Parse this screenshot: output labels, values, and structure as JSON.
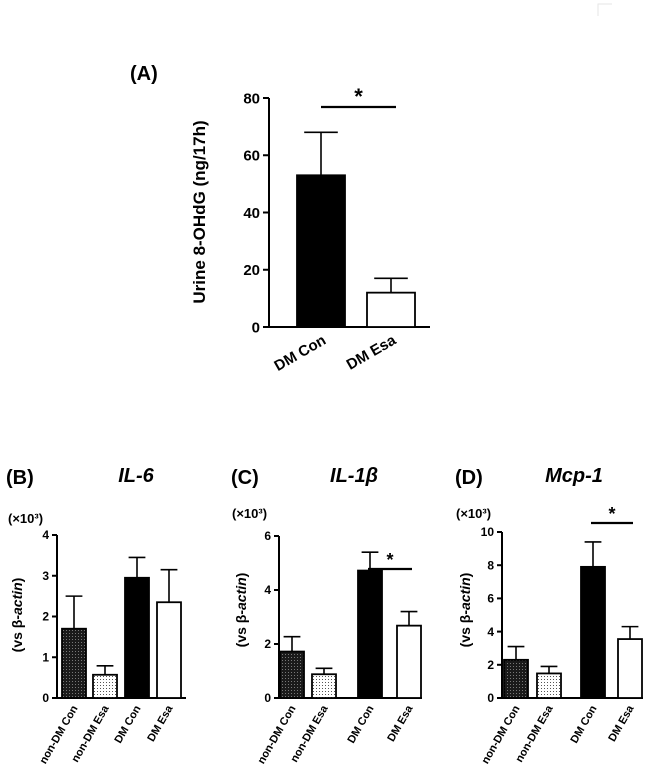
{
  "chart_data": [
    {
      "panel": "(A)",
      "type": "bar",
      "title": "",
      "ylabel": "Urine 8-OHdG (ng/17h)",
      "xlabel": "",
      "categories": [
        "DM Con",
        "DM Esa"
      ],
      "values": [
        53,
        12
      ],
      "errors": [
        15,
        5
      ],
      "fills": [
        "solid",
        "white"
      ],
      "ylim": [
        0,
        80
      ],
      "yticks": [
        "0",
        "20",
        "40",
        "60",
        "80"
      ],
      "significance": [
        {
          "from": 0,
          "to": 1,
          "label": "*"
        }
      ]
    },
    {
      "panel": "(B)",
      "type": "bar",
      "title": "IL-6",
      "ylabel": "(vs β-actin)",
      "ylabel_prefix": "(vs β-",
      "ylabel_italic": "actin",
      "ylabel_suffix": ")",
      "scale_label": "(×10³)",
      "categories": [
        "non-DM Con",
        "non-DM Esa",
        "DM Con",
        "DM Esa"
      ],
      "values": [
        1.7,
        0.57,
        2.95,
        2.35
      ],
      "errors": [
        0.8,
        0.22,
        0.5,
        0.8
      ],
      "fills": [
        "dark-dotted",
        "light-dotted",
        "solid",
        "white"
      ],
      "ylim": [
        0,
        4
      ],
      "yticks": [
        "0",
        "1",
        "2",
        "3",
        "4"
      ],
      "significance": []
    },
    {
      "panel": "(C)",
      "type": "bar",
      "title": "IL-1β",
      "ylabel": "(vs β-actin)",
      "ylabel_prefix": "(vs β-",
      "ylabel_italic": "actin",
      "ylabel_suffix": ")",
      "scale_label": "(×10³)",
      "categories": [
        "non-DM Con",
        "non-DM Esa",
        "DM Con",
        "DM Esa"
      ],
      "values": [
        1.72,
        0.88,
        4.72,
        2.68
      ],
      "errors": [
        0.55,
        0.22,
        0.68,
        0.52
      ],
      "fills": [
        "dark-dotted",
        "light-dotted",
        "solid",
        "white"
      ],
      "ylim": [
        0,
        6
      ],
      "yticks": [
        "0",
        "2",
        "4",
        "6"
      ],
      "significance": [
        {
          "from": 2,
          "to": 3,
          "label": "*"
        }
      ]
    },
    {
      "panel": "(D)",
      "type": "bar",
      "title": "Mcp-1",
      "ylabel": "(vs β-actin)",
      "ylabel_prefix": "(vs β-",
      "ylabel_italic": "actin",
      "ylabel_suffix": ")",
      "scale_label": "(×10³)",
      "categories": [
        "non-DM Con",
        "non-DM Esa",
        "DM Con",
        "DM Esa"
      ],
      "values": [
        2.3,
        1.48,
        7.9,
        3.55
      ],
      "errors": [
        0.8,
        0.42,
        1.5,
        0.75
      ],
      "fills": [
        "dark-dotted",
        "light-dotted",
        "solid",
        "white"
      ],
      "ylim": [
        0,
        10
      ],
      "yticks": [
        "0",
        "2",
        "4",
        "6",
        "8",
        "10"
      ],
      "significance": [
        {
          "from": 2,
          "to": 3,
          "label": "*"
        }
      ]
    }
  ]
}
